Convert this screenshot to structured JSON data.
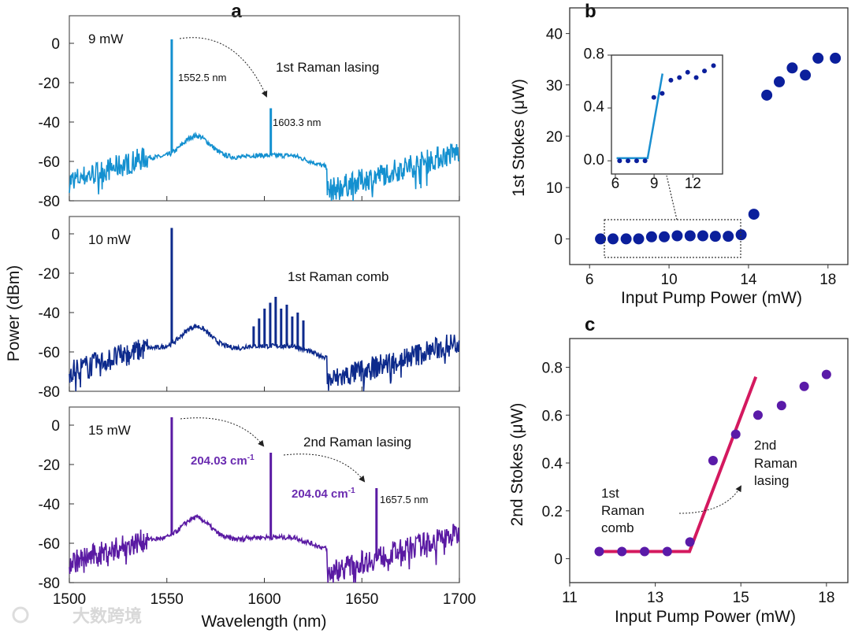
{
  "panel_labels": {
    "a": "a",
    "b": "b",
    "c": "c"
  },
  "watermark": "大数跨境",
  "colors": {
    "spec1": "#1390d0",
    "spec2": "#0d2a8c",
    "spec3": "#5a1aa3",
    "b_points": "#0b1f9c",
    "inset_line": "#1a8fd0",
    "c_line": "#d4195f",
    "c_points": "#5a1aa8"
  },
  "chart_data": [
    {
      "id": "a",
      "type": "line",
      "xlabel": "Wavelength (nm)",
      "ylabel": "Power (dBm)",
      "xlim": [
        1500,
        1700
      ],
      "ylim": [
        -80,
        5
      ],
      "xticks": [
        "1500",
        "1550",
        "1600",
        "1650",
        "1700"
      ],
      "yticks": [
        "0",
        "-20",
        "-40",
        "-60",
        "-80"
      ],
      "subplots": [
        {
          "label": "9 mW",
          "title": "1st Raman lasing",
          "peaks": [
            {
              "wavelength": 1552.5,
              "power": 2
            },
            {
              "wavelength": 1603.3,
              "power": -33
            }
          ],
          "annotations": [
            "1552.5 nm",
            "1603.3 nm"
          ]
        },
        {
          "label": "10 mW",
          "title": "1st Raman comb",
          "peaks": [
            {
              "wavelength": 1552.5,
              "power": 3
            },
            {
              "wavelength": 1594.5,
              "power": -47
            },
            {
              "wavelength": 1597.3,
              "power": -43
            },
            {
              "wavelength": 1600.1,
              "power": -38
            },
            {
              "wavelength": 1603.0,
              "power": -35
            },
            {
              "wavelength": 1605.8,
              "power": -32
            },
            {
              "wavelength": 1608.6,
              "power": -38
            },
            {
              "wavelength": 1611.5,
              "power": -36
            },
            {
              "wavelength": 1614.3,
              "power": -42
            },
            {
              "wavelength": 1617.1,
              "power": -40
            },
            {
              "wavelength": 1620.0,
              "power": -44
            }
          ],
          "annotations": []
        },
        {
          "label": "15 mW",
          "title": "2nd Raman lasing",
          "peaks": [
            {
              "wavelength": 1552.5,
              "power": 4
            },
            {
              "wavelength": 1603.3,
              "power": -14
            },
            {
              "wavelength": 1657.5,
              "power": -32
            }
          ],
          "annotations": [
            "204.03 cm",
            "204.04 cm",
            "1657.5 nm"
          ],
          "superscript": "-1"
        }
      ]
    },
    {
      "id": "b",
      "type": "scatter",
      "xlabel": "Input Pump Power (mW)",
      "ylabel": "1st Stokes (μW)",
      "xlim": [
        5,
        19
      ],
      "ylim": [
        -5,
        45
      ],
      "xticks": [
        "6",
        "10",
        "14",
        "18"
      ],
      "yticks": [
        "0",
        "10",
        "20",
        "30",
        "40"
      ],
      "x": [
        6.55,
        7.18,
        7.84,
        8.47,
        9.12,
        9.76,
        10.41,
        11.06,
        11.7,
        12.33,
        12.98,
        13.63,
        14.27,
        14.92,
        15.55,
        16.2,
        16.86,
        17.5,
        18.37
      ],
      "y": [
        0,
        0,
        0,
        0,
        0.4,
        0.4,
        0.6,
        0.6,
        0.6,
        0.5,
        0.5,
        0.8,
        4.8,
        28,
        30.6,
        33.3,
        31.9,
        35.2,
        35.2
      ],
      "inset": {
        "xlim": [
          5.7,
          14.3
        ],
        "ylim": [
          -0.1,
          0.8
        ],
        "xticks": [
          "6",
          "9",
          "12"
        ],
        "yticks": [
          "0.0",
          "0.4",
          "0.8"
        ],
        "x": [
          6.33,
          6.98,
          7.65,
          8.3,
          8.98,
          9.63,
          10.3,
          10.96,
          11.6,
          12.26,
          12.9,
          13.6
        ],
        "y": [
          0,
          0,
          0,
          0,
          0.48,
          0.51,
          0.61,
          0.63,
          0.67,
          0.63,
          0.68,
          0.72
        ],
        "fit": {
          "x": [
            6.1,
            8.5,
            9.65
          ],
          "y": [
            0.02,
            0.02,
            0.66
          ]
        }
      }
    },
    {
      "id": "c",
      "type": "scatter",
      "xlabel": "Input Pump Power (mW)",
      "ylabel": "2nd Stokes (μW)",
      "xlim": [
        11,
        17.5
      ],
      "ylim": [
        -0.1,
        0.92
      ],
      "xticks": [
        "11",
        "13",
        "15",
        "18"
      ],
      "x": [
        11.69,
        12.22,
        12.75,
        13.28,
        13.81,
        14.35,
        14.88,
        15.4,
        15.95,
        16.48,
        17.0
      ],
      "y": [
        0.03,
        0.03,
        0.03,
        0.03,
        0.07,
        0.41,
        0.52,
        0.6,
        0.64,
        0.72,
        0.77
      ],
      "yticks": [
        "0",
        "0.2",
        "0.4",
        "0.6",
        "0.8"
      ],
      "fit": {
        "x": [
          11.65,
          13.8,
          15.35
        ],
        "y": [
          0.03,
          0.03,
          0.76
        ]
      },
      "annotations": {
        "left": [
          "1st",
          "Raman",
          "comb"
        ],
        "right": [
          "2nd",
          "Raman",
          "lasing"
        ]
      }
    }
  ]
}
